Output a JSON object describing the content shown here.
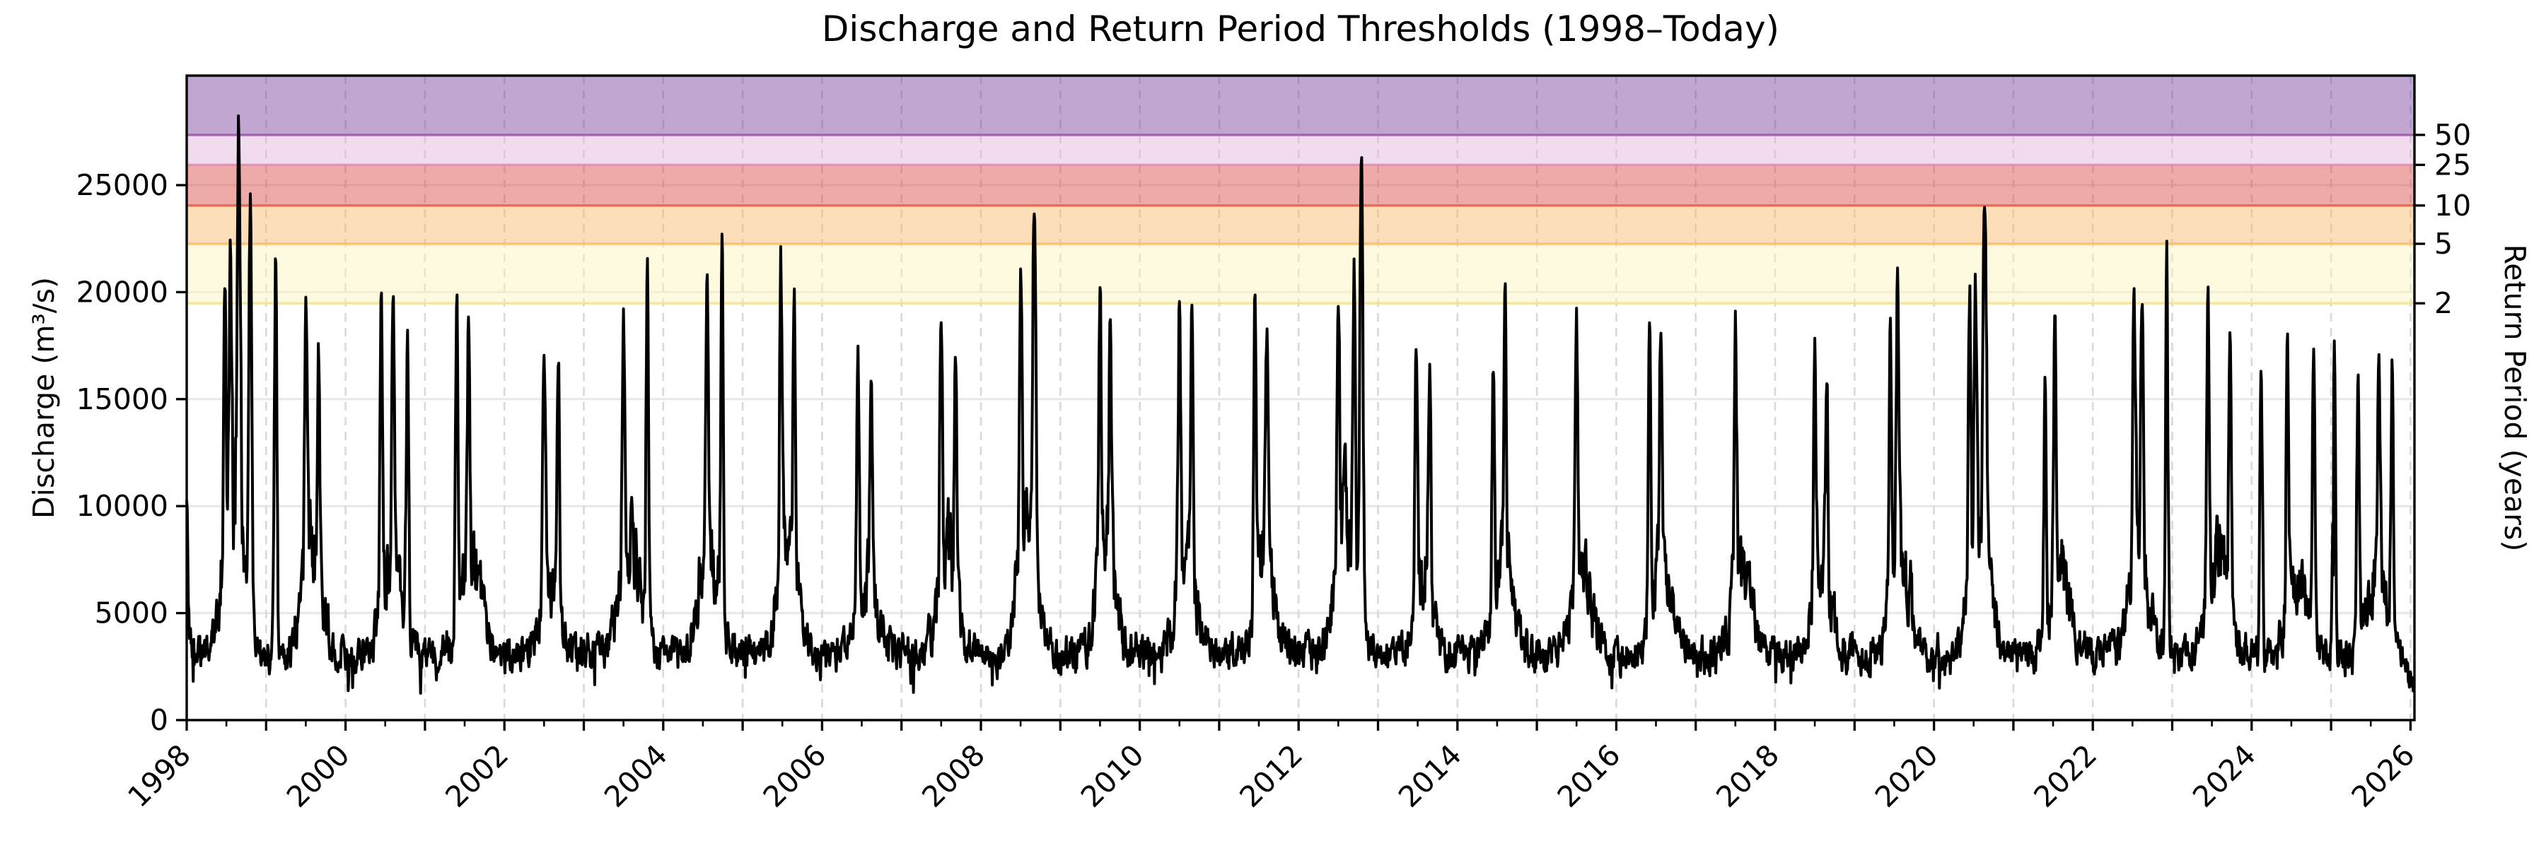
{
  "chart_data": {
    "type": "line",
    "title": "Discharge and Return Period Thresholds (1998–Today)",
    "ylabel_left": "Discharge (m³/s)",
    "ylabel_right": "Return Period (years)",
    "x_range": [
      1998.0,
      2026.05
    ],
    "y_range": [
      0,
      30120
    ],
    "x_tick_years_major": [
      1998,
      1999,
      2000,
      2001,
      2002,
      2003,
      2004,
      2005,
      2006,
      2007,
      2008,
      2009,
      2010,
      2011,
      2012,
      2013,
      2014,
      2015,
      2016,
      2017,
      2018,
      2019,
      2020,
      2021,
      2022,
      2023,
      2024,
      2025,
      2026
    ],
    "x_tick_labeled_years": [
      1998,
      2000,
      2002,
      2004,
      2006,
      2008,
      2010,
      2012,
      2014,
      2016,
      2018,
      2020,
      2022,
      2024,
      2026
    ],
    "x_minor_tick_step_years": 0.5,
    "y_ticks": [
      0,
      5000,
      10000,
      15000,
      20000,
      25000
    ],
    "y_tick_labels": [
      "0",
      "5000",
      "10000",
      "15000",
      "20000",
      "25000"
    ],
    "grid": {
      "horizontal": true,
      "vertical_dashed_every_year": true
    },
    "thresholds": [
      {
        "return_period_years": 2,
        "tick_label": "2",
        "discharge_m3s": 19480,
        "line_color": "#f2e394",
        "band_color": "#fbf4b8"
      },
      {
        "return_period_years": 5,
        "tick_label": "5",
        "discharge_m3s": 22260,
        "line_color": "#fbbe6e",
        "band_color": "#f9b862"
      },
      {
        "return_period_years": 10,
        "tick_label": "10",
        "discharge_m3s": 24050,
        "line_color": "#e5604a",
        "band_color": "#da433a"
      },
      {
        "return_period_years": 25,
        "tick_label": "25",
        "discharge_m3s": 25950,
        "line_color": "#df8fae",
        "band_color": "#e0b2da"
      },
      {
        "return_period_years": 50,
        "tick_label": "50",
        "discharge_m3s": 27350,
        "line_color": "#a05aa8",
        "band_color": "#783a9c"
      }
    ],
    "band_alpha": 0.45,
    "series": {
      "name": "daily-discharge",
      "color": "#000000",
      "line_width": 4,
      "baseflow_m3s": 3100,
      "end_time": 2026.04,
      "end_value_m3s": 1700,
      "record_peak": {
        "year": 1998,
        "value_m3s": 27900
      },
      "annual_peaks": [
        {
          "year": 1998,
          "events": [
            [
              0.0,
              10500
            ],
            [
              0.48,
              20400
            ],
            [
              0.55,
              22400
            ],
            [
              0.655,
              27900
            ],
            [
              0.8,
              23800
            ]
          ]
        },
        {
          "year": 1999,
          "events": [
            [
              0.12,
              21500
            ],
            [
              0.5,
              19300
            ],
            [
              0.66,
              17900
            ]
          ]
        },
        {
          "year": 2000,
          "events": [
            [
              0.45,
              19100
            ],
            [
              0.6,
              18900
            ],
            [
              0.78,
              17600
            ]
          ]
        },
        {
          "year": 2001,
          "events": [
            [
              0.4,
              19000
            ],
            [
              0.55,
              18800
            ]
          ]
        },
        {
          "year": 2002,
          "events": [
            [
              0.5,
              17000
            ],
            [
              0.68,
              16200
            ]
          ]
        },
        {
          "year": 2003,
          "events": [
            [
              0.5,
              18500
            ],
            [
              0.8,
              21900
            ]
          ]
        },
        {
          "year": 2004,
          "events": [
            [
              0.55,
              20100
            ],
            [
              0.74,
              22300
            ]
          ]
        },
        {
          "year": 2005,
          "events": [
            [
              0.48,
              22300
            ],
            [
              0.65,
              19500
            ]
          ]
        },
        {
          "year": 2006,
          "events": [
            [
              0.45,
              17200
            ],
            [
              0.62,
              16200
            ]
          ]
        },
        {
          "year": 2007,
          "events": [
            [
              0.5,
              19700
            ],
            [
              0.68,
              17500
            ]
          ]
        },
        {
          "year": 2008,
          "events": [
            [
              0.5,
              20600
            ],
            [
              0.67,
              23800
            ]
          ]
        },
        {
          "year": 2009,
          "events": [
            [
              0.5,
              20200
            ],
            [
              0.63,
              19300
            ]
          ]
        },
        {
          "year": 2010,
          "events": [
            [
              0.5,
              20100
            ],
            [
              0.66,
              19200
            ]
          ]
        },
        {
          "year": 2011,
          "events": [
            [
              0.45,
              19500
            ],
            [
              0.6,
              18000
            ]
          ]
        },
        {
          "year": 2012,
          "events": [
            [
              0.5,
              20000
            ],
            [
              0.7,
              21300
            ],
            [
              0.79,
              25100
            ]
          ]
        },
        {
          "year": 2013,
          "events": [
            [
              0.48,
              17500
            ],
            [
              0.65,
              16800
            ]
          ]
        },
        {
          "year": 2014,
          "events": [
            [
              0.45,
              17100
            ],
            [
              0.6,
              19900
            ]
          ]
        },
        {
          "year": 2015,
          "events": [
            [
              0.5,
              18200
            ]
          ]
        },
        {
          "year": 2016,
          "events": [
            [
              0.42,
              18300
            ],
            [
              0.56,
              18800
            ]
          ]
        },
        {
          "year": 2017,
          "events": [
            [
              0.5,
              18900
            ]
          ]
        },
        {
          "year": 2018,
          "events": [
            [
              0.5,
              17500
            ],
            [
              0.65,
              16000
            ]
          ]
        },
        {
          "year": 2019,
          "events": [
            [
              0.45,
              19900
            ],
            [
              0.54,
              21200
            ]
          ]
        },
        {
          "year": 2020,
          "events": [
            [
              0.45,
              19900
            ],
            [
              0.52,
              20900
            ],
            [
              0.64,
              24300
            ]
          ]
        },
        {
          "year": 2021,
          "events": [
            [
              0.4,
              16500
            ],
            [
              0.52,
              18500
            ]
          ]
        },
        {
          "year": 2022,
          "events": [
            [
              0.52,
              20300
            ],
            [
              0.62,
              19900
            ],
            [
              0.93,
              21800
            ]
          ]
        },
        {
          "year": 2023,
          "events": [
            [
              0.45,
              20500
            ],
            [
              0.73,
              18800
            ]
          ]
        },
        {
          "year": 2024,
          "events": [
            [
              0.12,
              17200
            ],
            [
              0.45,
              18400
            ],
            [
              0.78,
              16500
            ]
          ]
        },
        {
          "year": 2025,
          "events": [
            [
              0.04,
              18300
            ],
            [
              0.34,
              16400
            ],
            [
              0.6,
              17000
            ],
            [
              0.77,
              17500
            ]
          ]
        }
      ]
    },
    "colors": {
      "background": "#ffffff",
      "frame": "#000000",
      "series": "#000000",
      "grid_horizontal": "#e7e7e7",
      "grid_vertical": "#d9d9d9",
      "text": "#000000"
    }
  }
}
